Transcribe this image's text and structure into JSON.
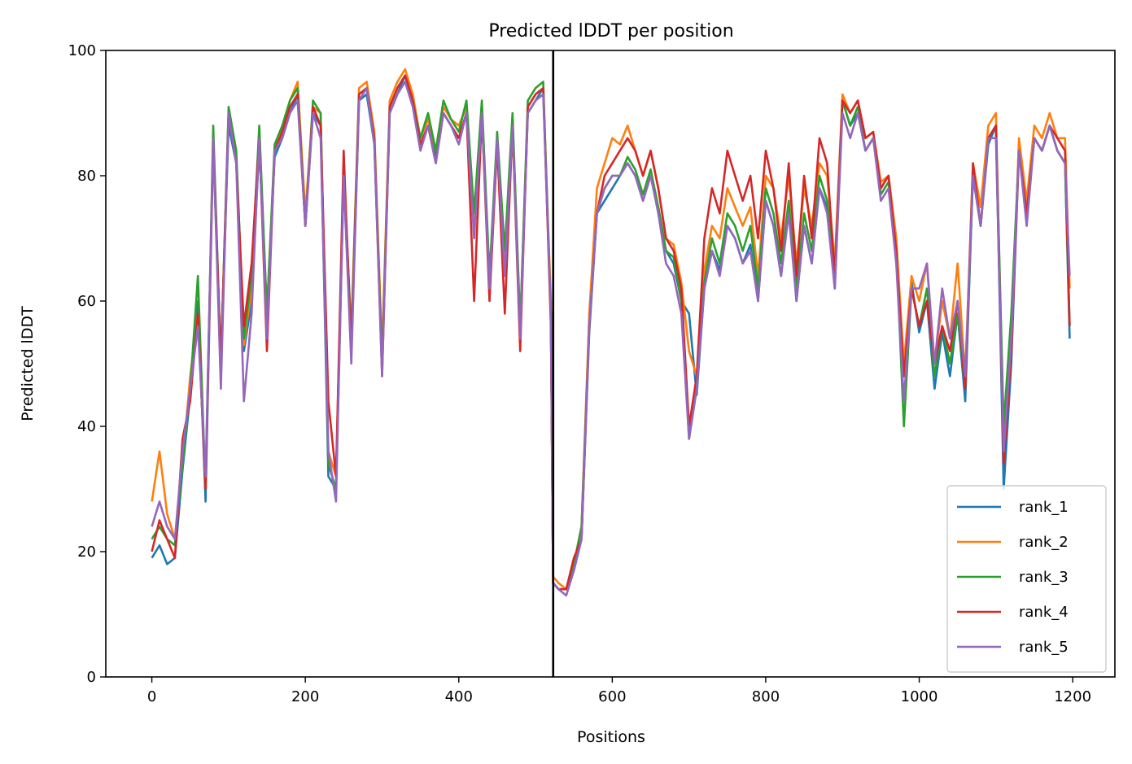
{
  "chart_data": {
    "type": "line",
    "title": "Predicted lDDT per position",
    "xlabel": "Positions",
    "ylabel": "Predicted lDDT",
    "xlim": [
      -60,
      1255
    ],
    "ylim": [
      0,
      100
    ],
    "xticks": [
      0,
      200,
      400,
      600,
      800,
      1000,
      1200
    ],
    "yticks": [
      0,
      20,
      40,
      60,
      80,
      100
    ],
    "grid": false,
    "legend_position": "lower-right",
    "vertical_lines": [
      523
    ],
    "vline_color": "#000000",
    "series": [
      {
        "name": "rank_1",
        "color": "#1f77b4",
        "x": [
          0,
          10,
          20,
          30,
          40,
          50,
          60,
          70,
          80,
          90,
          100,
          110,
          120,
          130,
          140,
          150,
          160,
          170,
          180,
          190,
          200,
          210,
          220,
          230,
          240,
          250,
          260,
          270,
          280,
          290,
          300,
          310,
          320,
          330,
          340,
          350,
          360,
          370,
          380,
          390,
          400,
          410,
          420,
          430,
          440,
          450,
          460,
          470,
          480,
          490,
          500,
          510,
          520,
          523,
          530,
          540,
          550,
          560,
          570,
          580,
          590,
          600,
          610,
          620,
          630,
          640,
          650,
          660,
          670,
          680,
          690,
          700,
          710,
          720,
          730,
          740,
          750,
          760,
          770,
          780,
          790,
          800,
          810,
          820,
          830,
          840,
          850,
          860,
          870,
          880,
          890,
          900,
          910,
          920,
          930,
          940,
          950,
          960,
          970,
          980,
          990,
          1000,
          1010,
          1020,
          1030,
          1040,
          1050,
          1060,
          1070,
          1080,
          1090,
          1100,
          1110,
          1120,
          1130,
          1140,
          1150,
          1160,
          1170,
          1180,
          1190,
          1196
        ],
        "y": [
          19,
          21,
          18,
          19,
          33,
          45,
          60,
          28,
          85,
          50,
          88,
          82,
          52,
          60,
          85,
          58,
          83,
          86,
          90,
          93,
          72,
          90,
          88,
          32,
          30,
          80,
          52,
          92,
          93,
          85,
          50,
          90,
          93,
          96,
          92,
          85,
          88,
          83,
          90,
          88,
          86,
          90,
          72,
          90,
          62,
          85,
          66,
          88,
          55,
          90,
          92,
          94,
          58,
          15,
          14,
          14,
          17,
          22,
          55,
          74,
          76,
          78,
          80,
          82,
          80,
          76,
          80,
          75,
          68,
          66,
          60,
          58,
          45,
          62,
          68,
          65,
          72,
          70,
          66,
          69,
          60,
          76,
          72,
          64,
          75,
          60,
          72,
          66,
          78,
          75,
          62,
          92,
          88,
          90,
          84,
          86,
          78,
          80,
          70,
          48,
          63,
          55,
          60,
          46,
          55,
          48,
          58,
          44,
          80,
          72,
          85,
          88,
          30,
          50,
          84,
          74,
          86,
          84,
          88,
          84,
          82,
          54
        ]
      },
      {
        "name": "rank_2",
        "color": "#ff7f0e",
        "x": [
          0,
          10,
          20,
          30,
          40,
          50,
          60,
          70,
          80,
          90,
          100,
          110,
          120,
          130,
          140,
          150,
          160,
          170,
          180,
          190,
          200,
          210,
          220,
          230,
          240,
          250,
          260,
          270,
          280,
          290,
          300,
          310,
          320,
          330,
          340,
          350,
          360,
          370,
          380,
          390,
          400,
          410,
          420,
          430,
          440,
          450,
          460,
          470,
          480,
          490,
          500,
          510,
          520,
          523,
          530,
          540,
          550,
          560,
          570,
          580,
          590,
          600,
          610,
          620,
          630,
          640,
          650,
          660,
          670,
          680,
          690,
          700,
          710,
          720,
          730,
          740,
          750,
          760,
          770,
          780,
          790,
          800,
          810,
          820,
          830,
          840,
          850,
          860,
          870,
          880,
          890,
          900,
          910,
          920,
          930,
          940,
          950,
          960,
          970,
          980,
          990,
          1000,
          1010,
          1020,
          1030,
          1040,
          1050,
          1060,
          1070,
          1080,
          1090,
          1100,
          1110,
          1120,
          1130,
          1140,
          1150,
          1160,
          1170,
          1180,
          1190,
          1196
        ],
        "y": [
          28,
          36,
          26,
          22,
          34,
          48,
          58,
          30,
          86,
          50,
          90,
          82,
          53,
          62,
          86,
          58,
          84,
          88,
          92,
          95,
          74,
          91,
          90,
          36,
          32,
          80,
          55,
          94,
          95,
          87,
          52,
          92,
          95,
          97,
          93,
          86,
          89,
          84,
          91,
          89,
          88,
          91,
          73,
          91,
          62,
          86,
          67,
          89,
          56,
          91,
          93,
          94,
          60,
          16,
          15,
          14,
          18,
          24,
          58,
          78,
          82,
          86,
          85,
          88,
          84,
          80,
          84,
          78,
          70,
          69,
          63,
          52,
          48,
          65,
          72,
          70,
          78,
          75,
          72,
          75,
          64,
          80,
          78,
          70,
          80,
          66,
          78,
          72,
          82,
          80,
          66,
          93,
          90,
          92,
          86,
          87,
          79,
          80,
          70,
          50,
          64,
          60,
          66,
          50,
          60,
          54,
          66,
          48,
          82,
          75,
          88,
          90,
          36,
          52,
          86,
          76,
          88,
          86,
          90,
          86,
          86,
          62
        ]
      },
      {
        "name": "rank_3",
        "color": "#2ca02c",
        "x": [
          0,
          10,
          20,
          30,
          40,
          50,
          60,
          70,
          80,
          90,
          100,
          110,
          120,
          130,
          140,
          150,
          160,
          170,
          180,
          190,
          200,
          210,
          220,
          230,
          240,
          250,
          260,
          270,
          280,
          290,
          300,
          310,
          320,
          330,
          340,
          350,
          360,
          370,
          380,
          390,
          400,
          410,
          420,
          430,
          440,
          450,
          460,
          470,
          480,
          490,
          500,
          510,
          520,
          523,
          530,
          540,
          550,
          560,
          570,
          580,
          590,
          600,
          610,
          620,
          630,
          640,
          650,
          660,
          670,
          680,
          690,
          700,
          710,
          720,
          730,
          740,
          750,
          760,
          770,
          780,
          790,
          800,
          810,
          820,
          830,
          840,
          850,
          860,
          870,
          880,
          890,
          900,
          910,
          920,
          930,
          940,
          950,
          960,
          970,
          980,
          990,
          1000,
          1010,
          1020,
          1030,
          1040,
          1050,
          1060,
          1070,
          1080,
          1090,
          1100,
          1110,
          1120,
          1130,
          1140,
          1150,
          1160,
          1170,
          1180,
          1190,
          1196
        ],
        "y": [
          22,
          24,
          22,
          21,
          34,
          46,
          64,
          30,
          88,
          50,
          91,
          84,
          54,
          64,
          88,
          58,
          85,
          88,
          92,
          94,
          72,
          92,
          90,
          34,
          30,
          82,
          54,
          93,
          94,
          86,
          50,
          91,
          94,
          96,
          92,
          86,
          90,
          84,
          92,
          89,
          87,
          92,
          74,
          92,
          64,
          87,
          68,
          90,
          56,
          92,
          94,
          95,
          58,
          15,
          14,
          14,
          18,
          24,
          56,
          74,
          78,
          80,
          80,
          83,
          81,
          77,
          81,
          75,
          68,
          67,
          60,
          38,
          46,
          63,
          70,
          66,
          74,
          72,
          68,
          72,
          62,
          78,
          74,
          66,
          76,
          62,
          74,
          68,
          80,
          76,
          64,
          92,
          88,
          91,
          84,
          86,
          77,
          79,
          68,
          40,
          62,
          56,
          62,
          48,
          56,
          50,
          58,
          46,
          80,
          72,
          86,
          88,
          40,
          58,
          84,
          74,
          86,
          84,
          88,
          84,
          82,
          56
        ]
      },
      {
        "name": "rank_4",
        "color": "#d62728",
        "x": [
          0,
          10,
          20,
          30,
          40,
          50,
          60,
          70,
          80,
          90,
          100,
          110,
          120,
          130,
          140,
          150,
          160,
          170,
          180,
          190,
          200,
          210,
          220,
          230,
          240,
          250,
          260,
          270,
          280,
          290,
          300,
          310,
          320,
          330,
          340,
          350,
          360,
          370,
          380,
          390,
          400,
          410,
          420,
          430,
          440,
          450,
          460,
          470,
          480,
          490,
          500,
          510,
          520,
          523,
          530,
          540,
          550,
          560,
          570,
          580,
          590,
          600,
          610,
          620,
          630,
          640,
          650,
          660,
          670,
          680,
          690,
          700,
          710,
          720,
          730,
          740,
          750,
          760,
          770,
          780,
          790,
          800,
          810,
          820,
          830,
          840,
          850,
          860,
          870,
          880,
          890,
          900,
          910,
          920,
          930,
          940,
          950,
          960,
          970,
          980,
          990,
          1000,
          1010,
          1020,
          1030,
          1040,
          1050,
          1060,
          1070,
          1080,
          1090,
          1100,
          1110,
          1120,
          1130,
          1140,
          1150,
          1160,
          1170,
          1180,
          1190,
          1196
        ],
        "y": [
          20,
          25,
          22,
          19,
          38,
          44,
          58,
          30,
          86,
          50,
          90,
          82,
          56,
          66,
          86,
          52,
          84,
          87,
          91,
          93,
          72,
          91,
          88,
          44,
          32,
          84,
          52,
          93,
          94,
          86,
          48,
          91,
          94,
          96,
          92,
          85,
          88,
          82,
          90,
          88,
          86,
          90,
          60,
          90,
          60,
          85,
          58,
          88,
          52,
          91,
          93,
          94,
          56,
          15,
          14,
          14,
          19,
          22,
          56,
          74,
          80,
          82,
          84,
          86,
          84,
          80,
          84,
          78,
          70,
          68,
          62,
          40,
          48,
          70,
          78,
          74,
          84,
          80,
          76,
          80,
          70,
          84,
          78,
          68,
          82,
          64,
          80,
          70,
          86,
          82,
          64,
          92,
          90,
          92,
          86,
          87,
          78,
          80,
          68,
          48,
          62,
          56,
          60,
          50,
          56,
          52,
          60,
          46,
          82,
          72,
          86,
          88,
          34,
          52,
          84,
          74,
          86,
          84,
          88,
          86,
          84,
          56
        ]
      },
      {
        "name": "rank_5",
        "color": "#9467bd",
        "x": [
          0,
          10,
          20,
          30,
          40,
          50,
          60,
          70,
          80,
          90,
          100,
          110,
          120,
          130,
          140,
          150,
          160,
          170,
          180,
          190,
          200,
          210,
          220,
          230,
          240,
          250,
          260,
          270,
          280,
          290,
          300,
          310,
          320,
          330,
          340,
          350,
          360,
          370,
          380,
          390,
          400,
          410,
          420,
          430,
          440,
          450,
          460,
          470,
          480,
          490,
          500,
          510,
          520,
          523,
          530,
          540,
          550,
          560,
          570,
          580,
          590,
          600,
          610,
          620,
          630,
          640,
          650,
          660,
          670,
          680,
          690,
          700,
          710,
          720,
          730,
          740,
          750,
          760,
          770,
          780,
          790,
          800,
          810,
          820,
          830,
          840,
          850,
          860,
          870,
          880,
          890,
          900,
          910,
          920,
          930,
          940,
          950,
          960,
          970,
          980,
          990,
          1000,
          1010,
          1020,
          1030,
          1040,
          1050,
          1060,
          1070,
          1080,
          1090,
          1100,
          1110,
          1120,
          1130,
          1140,
          1150,
          1160,
          1170,
          1180,
          1190,
          1196
        ],
        "y": [
          24,
          28,
          24,
          22,
          36,
          46,
          56,
          32,
          86,
          46,
          90,
          82,
          44,
          58,
          86,
          54,
          84,
          86,
          90,
          92,
          72,
          90,
          86,
          36,
          28,
          80,
          50,
          92,
          94,
          85,
          48,
          90,
          93,
          95,
          91,
          84,
          88,
          82,
          90,
          88,
          85,
          90,
          70,
          90,
          62,
          86,
          64,
          88,
          54,
          90,
          92,
          93,
          58,
          15,
          14,
          13,
          17,
          22,
          56,
          74,
          78,
          80,
          80,
          82,
          80,
          76,
          80,
          74,
          66,
          64,
          58,
          38,
          46,
          62,
          68,
          64,
          72,
          70,
          66,
          68,
          60,
          76,
          72,
          64,
          74,
          60,
          72,
          66,
          78,
          74,
          62,
          90,
          86,
          90,
          84,
          86,
          76,
          78,
          66,
          44,
          62,
          62,
          66,
          50,
          62,
          54,
          60,
          48,
          80,
          72,
          86,
          86,
          36,
          54,
          84,
          72,
          86,
          84,
          88,
          84,
          82,
          64
        ]
      }
    ]
  }
}
